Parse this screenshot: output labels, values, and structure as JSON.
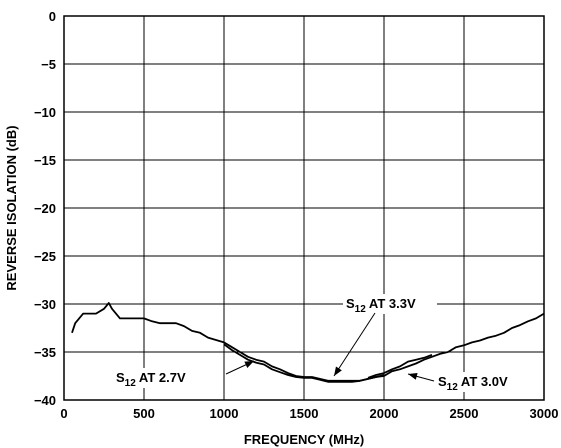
{
  "chart_data": {
    "type": "line",
    "xlabel": "FREQUENCY (MHz)",
    "ylabel": "REVERSE ISOLATION (dB)",
    "xlim": [
      0,
      3000
    ],
    "ylim": [
      -40,
      0
    ],
    "x_ticks": [
      0,
      500,
      1000,
      1500,
      2000,
      2500,
      3000
    ],
    "y_ticks": [
      0,
      -5,
      -10,
      -15,
      -20,
      -25,
      -30,
      -35,
      -40
    ],
    "x_tick_labels": [
      "0",
      "500",
      "1000",
      "1500",
      "2000",
      "2500",
      "3000"
    ],
    "y_tick_labels": [
      "0",
      "−5",
      "−10",
      "−15",
      "−20",
      "−25",
      "−30",
      "−35",
      "−40"
    ],
    "grid": true,
    "series": [
      {
        "name": "S12 AT 3.3V",
        "x": [
          50,
          70,
          120,
          200,
          250,
          280,
          300,
          350,
          400,
          500,
          550,
          600,
          700,
          750,
          800,
          850,
          900,
          1000,
          1050,
          1100,
          1150,
          1200,
          1250,
          1300,
          1350,
          1400,
          1450,
          1500,
          1550,
          1600,
          1650,
          1700,
          1750,
          1800,
          1850,
          1900,
          1950,
          2000,
          2050,
          2100,
          2150,
          2200,
          2250,
          2300,
          2350,
          2400,
          2450,
          2500,
          2550,
          2600,
          2650,
          2700,
          2750,
          2800,
          2850,
          2900,
          2950,
          3000
        ],
        "y": [
          -33.0,
          -32.0,
          -31.0,
          -31.0,
          -30.5,
          -29.9,
          -30.5,
          -31.5,
          -31.5,
          -31.5,
          -31.8,
          -32.0,
          -32.0,
          -32.3,
          -32.8,
          -33.0,
          -33.5,
          -34.0,
          -34.5,
          -35.0,
          -35.5,
          -35.8,
          -36.0,
          -36.5,
          -36.8,
          -37.2,
          -37.5,
          -37.6,
          -37.6,
          -37.8,
          -38.0,
          -38.0,
          -38.0,
          -38.0,
          -38.0,
          -37.8,
          -37.6,
          -37.5,
          -37.0,
          -36.8,
          -36.5,
          -36.2,
          -35.8,
          -35.5,
          -35.2,
          -35.0,
          -34.5,
          -34.3,
          -34.0,
          -33.8,
          -33.5,
          -33.3,
          -33.0,
          -32.5,
          -32.2,
          -31.8,
          -31.5,
          -31.0
        ]
      },
      {
        "name": "S12 AT 2.7V",
        "x": [
          1000,
          1050,
          1100,
          1150,
          1200,
          1250,
          1300,
          1350,
          1400,
          1450,
          1500,
          1550,
          1600,
          1650,
          1700,
          1750,
          1800,
          1850,
          1900,
          1950,
          2000
        ],
        "y": [
          -34.2,
          -34.8,
          -35.3,
          -35.8,
          -36.1,
          -36.3,
          -36.8,
          -37.1,
          -37.4,
          -37.6,
          -37.7,
          -37.7,
          -37.9,
          -38.1,
          -38.1,
          -38.1,
          -38.1,
          -38.0,
          -37.8,
          -37.6,
          -37.4
        ]
      },
      {
        "name": "S12 AT 3.0V",
        "x": [
          1900,
          1950,
          2000,
          2050,
          2100,
          2150,
          2200,
          2250,
          2300
        ],
        "y": [
          -37.7,
          -37.4,
          -37.2,
          -36.8,
          -36.5,
          -36.0,
          -35.8,
          -35.6,
          -35.3
        ]
      }
    ],
    "annotations": [
      {
        "main": "S",
        "sub": "12",
        "rest": " AT 3.3V"
      },
      {
        "main": "S",
        "sub": "12",
        "rest": " AT 2.7V"
      },
      {
        "main": "S",
        "sub": "12",
        "rest": " AT 3.0V"
      }
    ]
  }
}
